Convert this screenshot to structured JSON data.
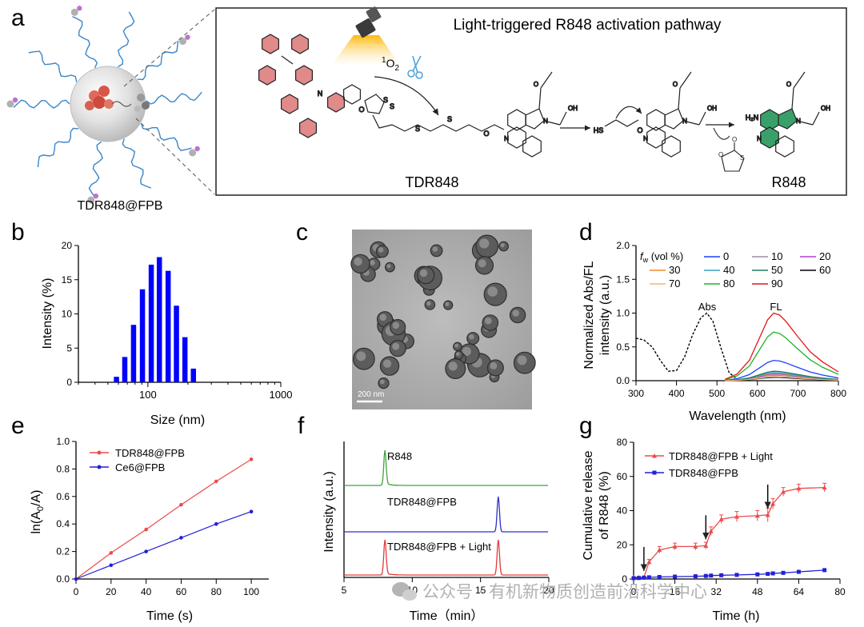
{
  "panel_letters": [
    "a",
    "b",
    "c",
    "d",
    "e",
    "f",
    "g"
  ],
  "panel_a": {
    "title": "Light-triggered R848 activation pathway",
    "np_label": "TDR848@FPB",
    "reagent": "1O2",
    "reagent_base": "O",
    "reagent_sup": "1",
    "reagent_sub": "2",
    "compound_1": "TDR848",
    "compound_2": "R848",
    "atoms": {
      "N": "N",
      "O": "O",
      "S": "S",
      "OH": "OH",
      "NH2": "H₂N",
      "H": "H",
      "SH": "HS"
    }
  },
  "panel_c": {
    "scale_bar": "200 nm"
  },
  "watermark": "公众号 · 有机新物质创造前沿科学中心",
  "chart_data": [
    {
      "panel": "b",
      "type": "bar",
      "xlabel": "Size (nm)",
      "ylabel": "Intensity (%)",
      "xscale": "log",
      "xlim": [
        30,
        1000
      ],
      "ylim": [
        0,
        20
      ],
      "xticks": [
        100,
        1000
      ],
      "yticks": [
        0,
        5,
        10,
        15,
        20
      ],
      "color": "#0000ff",
      "x": [
        58,
        67,
        78,
        91,
        106,
        122,
        142,
        164,
        190,
        220
      ],
      "values": [
        0.8,
        3.7,
        8.4,
        13.6,
        17.2,
        18.3,
        16.3,
        11.2,
        6.6,
        2.0
      ]
    },
    {
      "panel": "d",
      "type": "line",
      "xlabel": "Wavelength (nm)",
      "ylabel": "Normalized Abs/FL intensity  (a.u.)",
      "ylabel_lines": [
        "Normalized Abs/FL",
        "intensity  (a.u.)"
      ],
      "xlim": [
        300,
        800
      ],
      "ylim": [
        0,
        2.0
      ],
      "xticks": [
        300,
        400,
        500,
        600,
        700,
        800
      ],
      "yticks": [
        "0.0",
        "0.5",
        "1.0",
        "1.5",
        "2.0"
      ],
      "legend_title": "f",
      "legend_title_sub": "w",
      "legend_title_rest": " (vol %)",
      "annotations": [
        "Abs",
        "FL"
      ],
      "abs_series": {
        "name": "Abs",
        "color": "#000000",
        "dashed": true,
        "x": [
          300,
          320,
          340,
          360,
          380,
          400,
          420,
          440,
          460,
          475,
          490,
          510,
          530,
          550
        ],
        "y": [
          0.63,
          0.6,
          0.5,
          0.3,
          0.14,
          0.15,
          0.35,
          0.68,
          0.93,
          1.0,
          0.88,
          0.48,
          0.12,
          0.02
        ]
      },
      "fl_x": [
        520,
        550,
        580,
        610,
        625,
        640,
        655,
        670,
        700,
        730,
        760,
        800
      ],
      "fl_shape": [
        0.02,
        0.1,
        0.3,
        0.7,
        0.9,
        1.0,
        0.97,
        0.88,
        0.65,
        0.43,
        0.28,
        0.13
      ],
      "series": [
        {
          "name": "0",
          "color": "#1f3fff",
          "peak": 0.3
        },
        {
          "name": "10",
          "color": "#9a8fa8",
          "peak": 0.08
        },
        {
          "name": "20",
          "color": "#b040d0",
          "peak": 0.1
        },
        {
          "name": "30",
          "color": "#f08a2c",
          "peak": 0.11
        },
        {
          "name": "40",
          "color": "#3aa0c8",
          "peak": 0.12
        },
        {
          "name": "50",
          "color": "#207a5c",
          "peak": 0.14
        },
        {
          "name": "60",
          "color": "#000000",
          "peak": 0.05
        },
        {
          "name": "70",
          "color": "#f3b37a",
          "peak": 0.06
        },
        {
          "name": "80",
          "color": "#22b22a",
          "peak": 0.72
        },
        {
          "name": "90",
          "color": "#e01818",
          "peak": 1.0
        }
      ]
    },
    {
      "panel": "e",
      "type": "line",
      "xlabel": "Time (s)",
      "ylabel_base": "ln(A",
      "ylabel_sub": "0",
      "ylabel_rest": "/A)",
      "xlim": [
        0,
        110
      ],
      "ylim": [
        0,
        1.0
      ],
      "xticks": [
        0,
        20,
        40,
        60,
        80,
        100
      ],
      "yticks": [
        "0.0",
        "0.2",
        "0.4",
        "0.6",
        "0.8",
        "1.0"
      ],
      "x": [
        0,
        20,
        40,
        60,
        80,
        100
      ],
      "series": [
        {
          "name": "TDR848@FPB",
          "color": "#ec4b4b",
          "values": [
            0,
            0.19,
            0.36,
            0.54,
            0.71,
            0.87
          ]
        },
        {
          "name": "Ce6@FPB",
          "color": "#2121d8",
          "values": [
            0,
            0.1,
            0.2,
            0.3,
            0.4,
            0.49
          ]
        }
      ]
    },
    {
      "panel": "f",
      "type": "line",
      "xlabel": "Time（min）",
      "ylabel": "Intensity (a.u.)",
      "xlim": [
        5,
        20
      ],
      "xticks": [
        5,
        10,
        15,
        20
      ],
      "series": [
        {
          "name": "R848",
          "color": "#3ca33c",
          "peaks": [
            8.0
          ]
        },
        {
          "name": "TDR848@FPB",
          "color": "#3030c8",
          "peaks": [
            16.3
          ]
        },
        {
          "name": "TDR848@FPB + Light",
          "color": "#e23a3a",
          "peaks": [
            8.0,
            16.3
          ]
        }
      ]
    },
    {
      "panel": "g",
      "type": "line",
      "xlabel": "Time (h)",
      "ylabel": "Cumulative release of R848 (%)",
      "ylabel_lines": [
        "Cumulative release",
        "of R848 (%)"
      ],
      "xlim": [
        0,
        80
      ],
      "ylim": [
        0,
        80
      ],
      "xticks": [
        0,
        16,
        32,
        48,
        64,
        80
      ],
      "yticks": [
        0,
        20,
        40,
        60,
        80
      ],
      "arrows_at": [
        4,
        28,
        52
      ],
      "series": [
        {
          "name": "TDR848@FPB + Light",
          "color": "#ec4b4b",
          "x": [
            0,
            2,
            4,
            6,
            10,
            16,
            24,
            28,
            30,
            34,
            40,
            48,
            52,
            54,
            58,
            64,
            74
          ],
          "values": [
            1,
            1,
            1,
            10,
            17,
            19,
            19,
            19.5,
            28,
            35,
            36.5,
            37,
            37.5,
            44,
            51,
            53,
            53.5
          ],
          "errors": [
            0,
            0,
            0,
            1.5,
            2,
            2,
            2,
            2,
            2.5,
            2.5,
            3,
            3,
            4,
            3,
            2.5,
            2.5,
            2.5
          ]
        },
        {
          "name": "TDR848@FPB",
          "color": "#2121d8",
          "x": [
            0,
            2,
            4,
            6,
            10,
            16,
            24,
            28,
            30,
            34,
            40,
            48,
            52,
            54,
            58,
            64,
            74
          ],
          "values": [
            0.5,
            0.6,
            0.8,
            1,
            1.2,
            1.4,
            1.6,
            1.8,
            2,
            2.2,
            2.4,
            2.7,
            3,
            3.3,
            3.6,
            4.2,
            5.2
          ],
          "errors": [
            0,
            0,
            0,
            0,
            0,
            0,
            0,
            0,
            0,
            0,
            0,
            0,
            0,
            0,
            0,
            0,
            0
          ]
        }
      ]
    }
  ]
}
